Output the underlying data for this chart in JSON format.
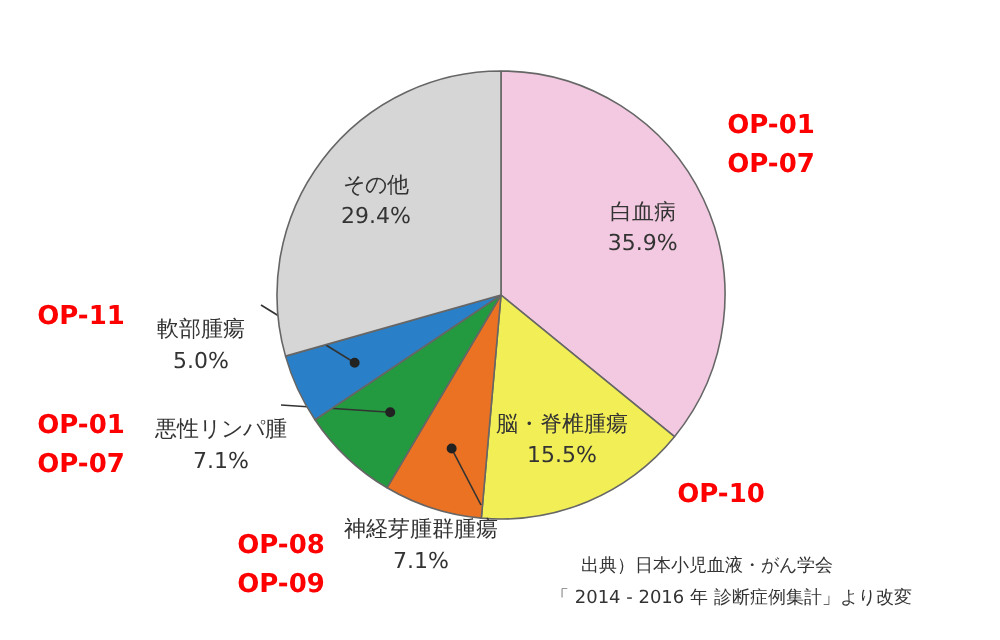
{
  "chart_data": {
    "type": "pie",
    "categories": [
      "白血病",
      "脳・脊椎腫瘍",
      "神経芽腫群腫瘍",
      "悪性リンパ腫",
      "軟部腫瘍",
      "その他"
    ],
    "values": [
      35.9,
      15.5,
      7.1,
      7.1,
      5.0,
      29.4
    ],
    "value_labels": [
      "35.9%",
      "15.5%",
      "7.1%",
      "7.1%",
      "5.0%",
      "29.4%"
    ],
    "colors": [
      "#f2c9e0",
      "#f2ee55",
      "#ea7222",
      "#239a3f",
      "#2a80c8",
      "#d6d6d6"
    ],
    "annotations": [
      "OP-01\nOP-07",
      "OP-10",
      "OP-08\nOP-09",
      "OP-01\nOP-07",
      "OP-11",
      "出典）日本小児血液・がん学会",
      "「 2014 - 2016 年 診断症例集計」より改変"
    ]
  }
}
